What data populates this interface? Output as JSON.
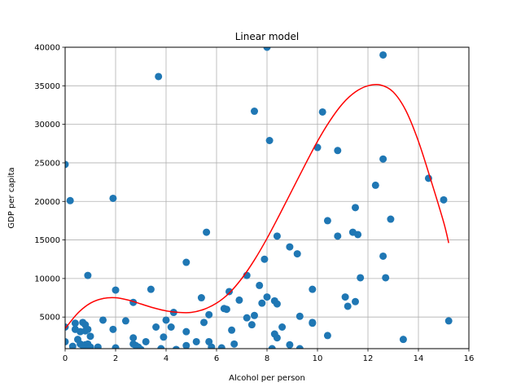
{
  "chart_data": {
    "type": "scatter",
    "title": "Linear model",
    "xlabel": "Alcohol per person",
    "ylabel": "GDP per capita",
    "xlim": [
      0,
      16
    ],
    "ylim": [
      900,
      40000
    ],
    "xticks": [
      0,
      2,
      4,
      6,
      8,
      10,
      12,
      14,
      16
    ],
    "yticks": [
      5000,
      10000,
      15000,
      20000,
      25000,
      30000,
      35000,
      40000
    ],
    "grid": true,
    "scatter_color": "#1f77b4",
    "line_color": "#ff0000",
    "series": [
      {
        "kind": "points",
        "x": [
          0.0,
          0.0,
          0.0,
          0.2,
          0.3,
          0.4,
          0.4,
          0.5,
          0.6,
          0.6,
          0.7,
          0.7,
          0.8,
          0.8,
          0.8,
          0.9,
          0.9,
          0.9,
          1.0,
          1.0,
          1.3,
          1.5,
          1.9,
          1.9,
          2.0,
          2.0,
          2.4,
          2.7,
          2.7,
          2.7,
          2.8,
          2.9,
          3.0,
          3.2,
          3.4,
          3.6,
          3.7,
          3.8,
          3.9,
          4.0,
          4.2,
          4.3,
          4.4,
          4.8,
          4.8,
          4.8,
          5.2,
          5.4,
          5.5,
          5.6,
          5.7,
          5.7,
          5.8,
          6.2,
          6.3,
          6.4,
          6.5,
          6.6,
          6.7,
          6.9,
          7.2,
          7.2,
          7.4,
          7.5,
          7.5,
          7.7,
          7.8,
          7.9,
          8.0,
          8.0,
          8.1,
          8.2,
          8.3,
          8.3,
          8.4,
          8.4,
          8.4,
          8.6,
          8.9,
          8.9,
          9.2,
          9.3,
          9.3,
          9.8,
          9.8,
          9.8,
          10.0,
          10.2,
          10.4,
          10.4,
          10.8,
          10.8,
          11.1,
          11.2,
          11.4,
          11.5,
          11.5,
          11.6,
          11.7,
          12.3,
          12.6,
          12.6,
          12.6,
          12.7,
          12.9,
          13.4,
          14.4,
          15.0,
          15.2
        ],
        "y": [
          24800,
          3700,
          1800,
          20100,
          1200,
          4200,
          3400,
          2100,
          3100,
          1500,
          4300,
          1300,
          4000,
          3200,
          1400,
          10400,
          1500,
          3400,
          2500,
          1100,
          1100,
          4600,
          20400,
          3400,
          8500,
          1000,
          4500,
          6900,
          2300,
          1500,
          1300,
          1100,
          800,
          1800,
          8600,
          3700,
          36200,
          900,
          2400,
          4600,
          3700,
          5600,
          800,
          12100,
          1300,
          3100,
          1800,
          7500,
          4300,
          16000,
          1800,
          5300,
          1100,
          1000,
          6100,
          6000,
          8300,
          3300,
          1500,
          7200,
          10400,
          4900,
          4000,
          31700,
          5200,
          9100,
          6800,
          12500,
          7600,
          40000,
          27900,
          900,
          2800,
          7100,
          15500,
          6700,
          2300,
          3700,
          14100,
          1400,
          13200,
          5100,
          900,
          8600,
          4300,
          4200,
          27000,
          31600,
          17500,
          2600,
          26600,
          15500,
          7600,
          6400,
          16000,
          19200,
          7000,
          15700,
          10100,
          22100,
          39000,
          25500,
          12900,
          10100,
          17700,
          2100,
          23000,
          20200,
          4500
        ]
      },
      {
        "kind": "line",
        "x": [
          0.0,
          0.5,
          1.0,
          1.5,
          2.0,
          2.5,
          3.0,
          3.5,
          4.0,
          4.5,
          5.0,
          5.5,
          6.0,
          6.5,
          7.0,
          7.5,
          8.0,
          8.5,
          9.0,
          9.5,
          10.0,
          10.5,
          11.0,
          11.5,
          12.0,
          12.5,
          13.0,
          13.5,
          14.0,
          14.5,
          15.0,
          15.2
        ],
        "y": [
          3500,
          5500,
          6800,
          7400,
          7500,
          7200,
          6700,
          6200,
          5800,
          5600,
          5600,
          6000,
          6800,
          8100,
          10000,
          12400,
          15200,
          18300,
          21500,
          24700,
          27800,
          30500,
          32700,
          34200,
          35000,
          35100,
          34200,
          31800,
          27800,
          22700,
          17300,
          14600
        ]
      }
    ]
  }
}
